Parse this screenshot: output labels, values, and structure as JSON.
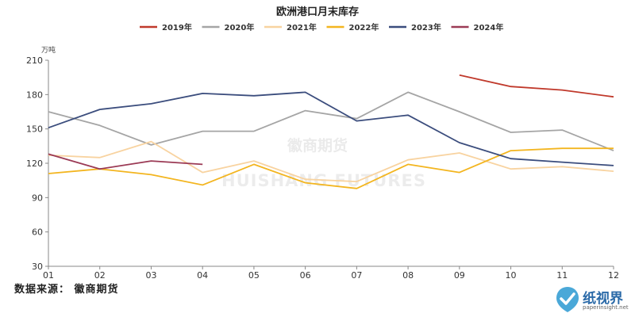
{
  "chart_data": {
    "type": "line",
    "title": "欧洲港口月末库存",
    "unit_label": "万吨",
    "xlabel": "",
    "ylabel": "",
    "categories": [
      "01",
      "02",
      "03",
      "04",
      "05",
      "06",
      "07",
      "08",
      "09",
      "10",
      "11",
      "12"
    ],
    "ylim": [
      30,
      210
    ],
    "yticks": [
      30,
      60,
      90,
      120,
      150,
      180,
      210
    ],
    "grid": false,
    "legend_position": "top",
    "series": [
      {
        "name": "2019年",
        "color": "#c0392b",
        "values": [
          null,
          null,
          null,
          null,
          null,
          null,
          null,
          null,
          197,
          187,
          184,
          178
        ]
      },
      {
        "name": "2020年",
        "color": "#a5a5a5",
        "values": [
          165,
          153,
          136,
          148,
          148,
          166,
          159,
          182,
          165,
          147,
          149,
          131
        ]
      },
      {
        "name": "2021年",
        "color": "#f8d3a0",
        "values": [
          127,
          125,
          139,
          112,
          122,
          106,
          104,
          123,
          129,
          115,
          117,
          113
        ]
      },
      {
        "name": "2022年",
        "color": "#f3b51f",
        "values": [
          111,
          115,
          110,
          101,
          119,
          103,
          98,
          119,
          112,
          131,
          133,
          133
        ]
      },
      {
        "name": "2023年",
        "color": "#3b4d7d",
        "values": [
          151,
          167,
          172,
          181,
          179,
          182,
          157,
          162,
          138,
          124,
          121,
          118
        ]
      },
      {
        "name": "2024年",
        "color": "#9b3a55",
        "values": [
          128,
          115,
          122,
          119,
          null,
          null,
          null,
          null,
          null,
          null,
          null,
          null
        ]
      }
    ]
  },
  "watermark": {
    "cn": "徽商期货",
    "en": "HUISHANG FUTURES"
  },
  "source_text": "数据来源： 徽商期货",
  "logo": {
    "name": "纸视界",
    "url": "paperinsight.net"
  }
}
